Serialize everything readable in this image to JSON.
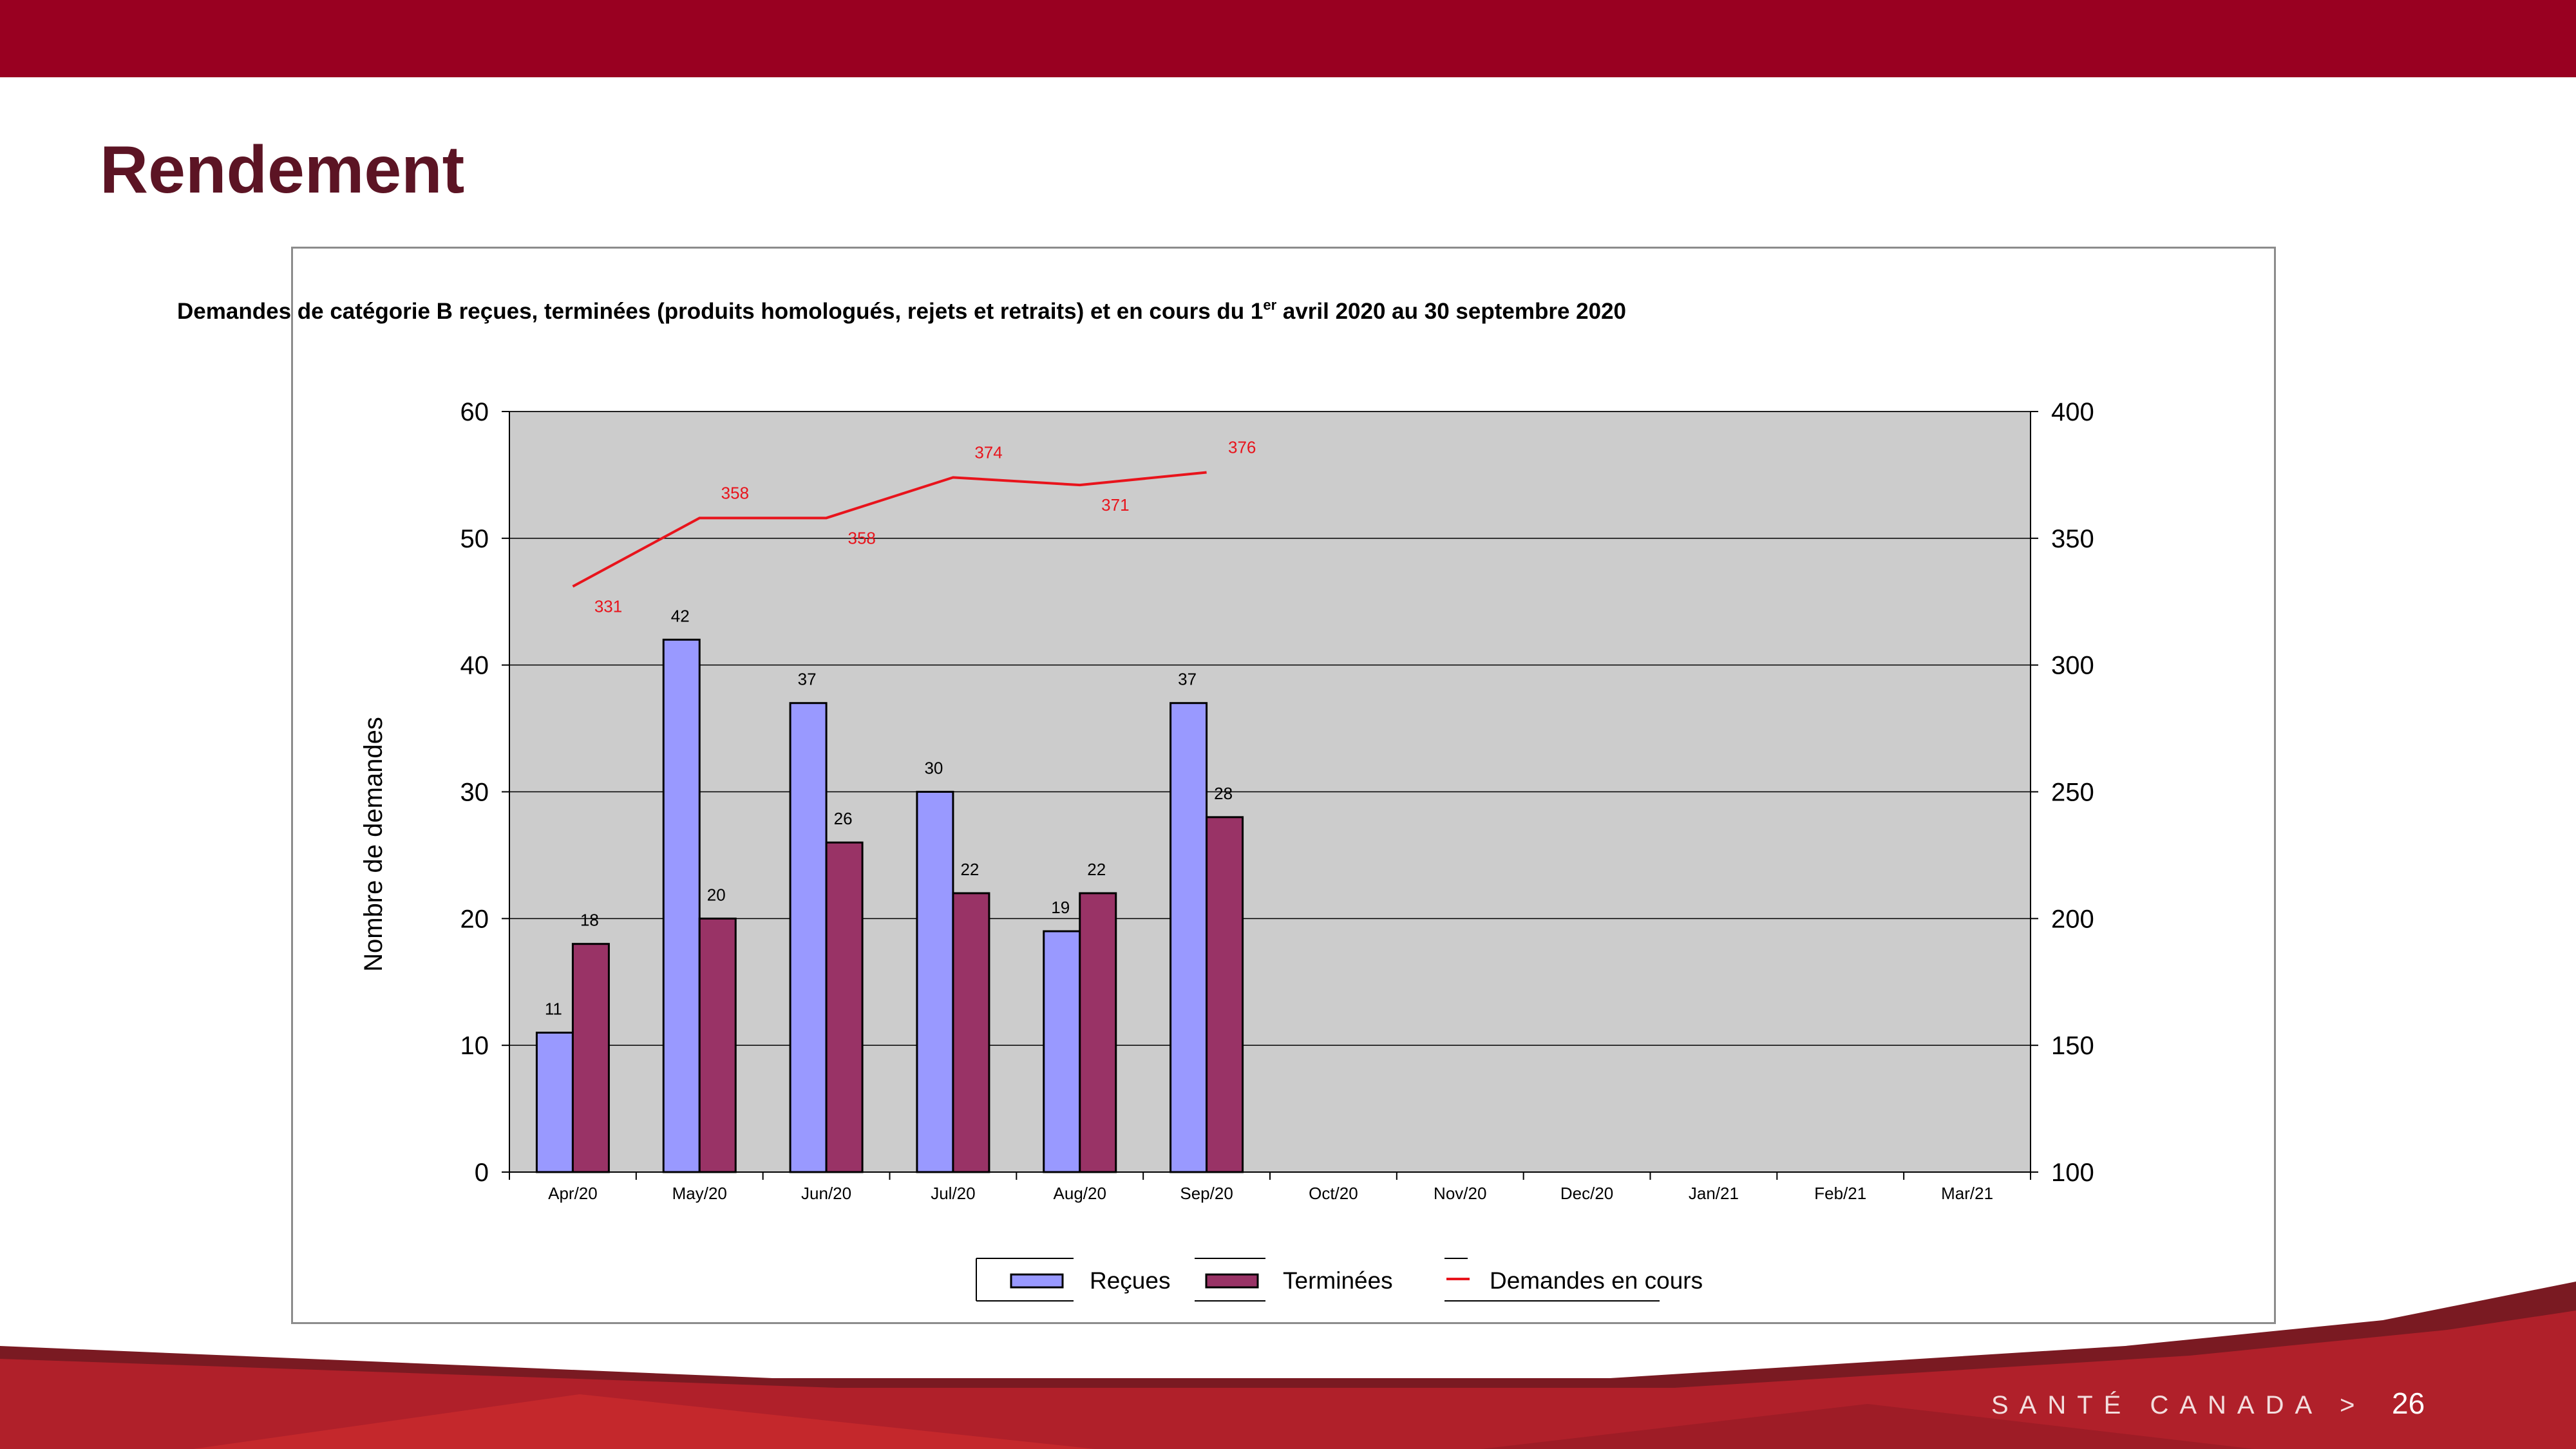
{
  "slide": {
    "title": "Rendement",
    "footer_brand": "SANTÉ CANADA >",
    "page_number": "26",
    "colors": {
      "top_bar": "#990021",
      "title": "#5c1424",
      "footer": "#b0202a"
    }
  },
  "chart_data": {
    "type": "bar",
    "title_pre": "Demandes de catégorie B reçues, terminées (produits homologués, rejets et retraits) et en cours du 1",
    "title_sup": "er",
    "title_post": " avril 2020 au 30 septembre 2020",
    "ylabel": "Nombre de demandes",
    "categories": [
      "Apr/20",
      "May/20",
      "Jun/20",
      "Jul/20",
      "Aug/20",
      "Sep/20",
      "Oct/20",
      "Nov/20",
      "Dec/20",
      "Jan/21",
      "Feb/21",
      "Mar/21"
    ],
    "ylim": [
      0,
      60
    ],
    "yticks": [
      "0",
      "10",
      "20",
      "30",
      "40",
      "50",
      "60"
    ],
    "y2lim": [
      100,
      400
    ],
    "y2ticks": [
      "100",
      "150",
      "200",
      "250",
      "300",
      "350",
      "400"
    ],
    "grid": true,
    "plot_background": "#cccccc",
    "legend_position": "bottom",
    "series": [
      {
        "name": "Reçues",
        "kind": "bar",
        "axis": "left",
        "color": "#9999ff",
        "values": [
          11,
          42,
          37,
          30,
          19,
          37,
          null,
          null,
          null,
          null,
          null,
          null
        ]
      },
      {
        "name": "Terminées",
        "kind": "bar",
        "axis": "left",
        "color": "#993366",
        "values": [
          18,
          20,
          26,
          22,
          22,
          28,
          null,
          null,
          null,
          null,
          null,
          null
        ]
      },
      {
        "name": "Demandes en cours",
        "kind": "line",
        "axis": "right",
        "color": "#e8141c",
        "values": [
          331,
          358,
          358,
          374,
          371,
          376,
          null,
          null,
          null,
          null,
          null,
          null
        ]
      }
    ]
  }
}
